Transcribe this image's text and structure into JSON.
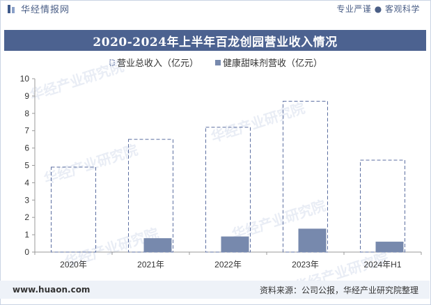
{
  "header": {
    "brand": "华经情报网",
    "tagline": "专业严谨 ● 客观科学"
  },
  "title": "2020-2024年上半年百龙创园营业收入情况",
  "footer": {
    "site": "www.huaon.com",
    "source": "资料来源：公司公报，华经产业研究院整理"
  },
  "watermark": "华经产业研究院",
  "colors": {
    "title_bg": "#4c6290",
    "bar_fill": "#7789ad",
    "dashed_stroke": "#5b6ea0",
    "footer_bg": "#eef2f8"
  },
  "chart_data": {
    "type": "bar",
    "title": "2020-2024年上半年百龙创园营业收入情况",
    "categories": [
      "2020年",
      "2021年",
      "2022年",
      "2023年",
      "2024年H1"
    ],
    "series": [
      {
        "name": "营业总收入（亿元）",
        "style": "dashed-outline",
        "values": [
          4.9,
          6.5,
          7.2,
          8.7,
          5.3
        ]
      },
      {
        "name": "健康甜味剂营收（亿元）",
        "style": "solid",
        "values": [
          0,
          0.8,
          0.9,
          1.35,
          0.6
        ]
      }
    ],
    "ylim": [
      0,
      10
    ],
    "yticks": [
      0,
      1,
      2,
      3,
      4,
      5,
      6,
      7,
      8,
      9,
      10
    ],
    "legend": "top-center",
    "grid": false
  }
}
